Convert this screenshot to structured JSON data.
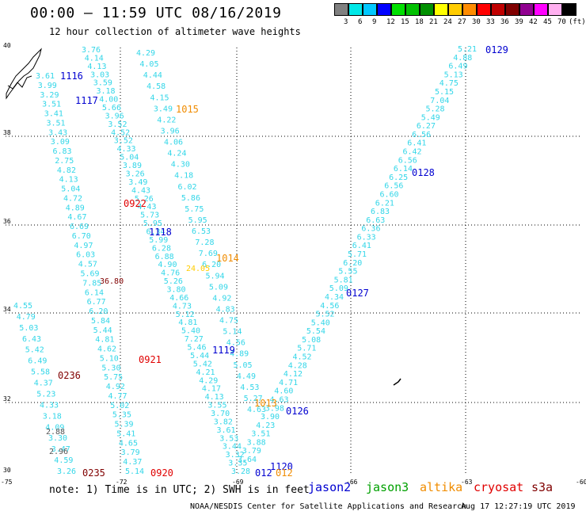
{
  "header": {
    "title": "00:00 – 11:59 UTC 08/16/2019",
    "subtitle": "12 hour collection of altimeter wave heights"
  },
  "legend": {
    "unit": "(ft)",
    "swatches": [
      {
        "label": "3",
        "color": "#808080"
      },
      {
        "label": "6",
        "color": "#00e8e8"
      },
      {
        "label": "9",
        "color": "#00c8ff"
      },
      {
        "label": "12",
        "color": "#0000ff"
      },
      {
        "label": "15",
        "color": "#00e000"
      },
      {
        "label": "18",
        "color": "#00c000"
      },
      {
        "label": "21",
        "color": "#009000"
      },
      {
        "label": "24",
        "color": "#ffff00"
      },
      {
        "label": "27",
        "color": "#ffcc00"
      },
      {
        "label": "30",
        "color": "#ff8c00"
      },
      {
        "label": "33",
        "color": "#ff0000"
      },
      {
        "label": "36",
        "color": "#c00000"
      },
      {
        "label": "39",
        "color": "#800000"
      },
      {
        "label": "42",
        "color": "#900090"
      },
      {
        "label": "45",
        "color": "#ff00ff"
      },
      {
        "label": "70",
        "color": "#ffb0f0"
      },
      {
        "label": "",
        "color": "#000000"
      }
    ]
  },
  "axes": {
    "lat_labels": [
      "40",
      "38",
      "36",
      "34",
      "32",
      "30"
    ],
    "lon_labels": [
      "-75",
      "-72",
      "-69",
      "-66",
      "-63",
      "-60"
    ]
  },
  "tracks": [
    {
      "track": "A",
      "values": [
        "3.76",
        "4.14",
        "4.13",
        "3.03",
        "3.59",
        "3.18",
        "4.00",
        "5.66",
        "3.96",
        "3.52",
        "4.52",
        "3.52",
        "4.33",
        "5.04",
        "3.89",
        "3.26",
        "3.49",
        "4.43",
        "5.26",
        "4.43",
        "5.73",
        "5.95",
        "6.34",
        "5.99",
        "6.28",
        "6.88",
        "4.90",
        "4.76",
        "5.26",
        "3.80",
        "4.66",
        "4.73",
        "5.12",
        "4.81",
        "5.40",
        "7.27",
        "5.46",
        "5.44",
        "5.42",
        "4.21",
        "4.29",
        "4.17",
        "4.13",
        "3.55",
        "3.70",
        "3.82",
        "3.61",
        "3.53",
        "3.44",
        "3.32",
        "3.35",
        "3.28"
      ]
    },
    {
      "track": "B",
      "values": [
        "3.61",
        "3.99",
        "3.29",
        "3.51",
        "3.41",
        "3.51",
        "3.43",
        "3.09",
        "6.83",
        "2.75",
        "4.82",
        "4.13",
        "5.04",
        "4.72",
        "4.89",
        "4.67",
        "6.69",
        "6.70",
        "4.97",
        "6.03",
        "4.57",
        "5.69",
        "7.85",
        "6.14",
        "6.77",
        "6.20",
        "5.84",
        "5.44",
        "4.81",
        "4.62",
        "5.10",
        "5.30",
        "5.75",
        "4.92",
        "4.77",
        "5.02",
        "5.35",
        "5.39",
        "5.41",
        "4.65",
        "3.79",
        "4.37",
        "5.14"
      ]
    },
    {
      "track": "C",
      "values": [
        "4.29",
        "4.05",
        "4.44",
        "4.58",
        "4.15",
        "3.49",
        "4.22",
        "3.96",
        "4.06",
        "4.24",
        "4.30",
        "4.18",
        "6.02",
        "5.86",
        "5.75",
        "5.95",
        "6.53",
        "7.28",
        "7.69",
        "6.20",
        "5.94",
        "5.09",
        "4.92",
        "4.83",
        "4.75",
        "5.14",
        "4.56",
        "4.89",
        "5.05",
        "4.49",
        "4.53",
        "5.27",
        "4.63"
      ]
    },
    {
      "track": "D",
      "values": [
        "4.55",
        "4.79",
        "5.03",
        "6.43",
        "5.42",
        "6.49",
        "5.58",
        "4.37",
        "5.23",
        "4.33",
        "3.18",
        "4.09",
        "3.30",
        "3.47",
        "4.59",
        "3.26"
      ]
    },
    {
      "track": "E",
      "values": [
        "5.21",
        "4.88",
        "6.49",
        "5.13",
        "4.75",
        "5.15",
        "7.04",
        "5.28",
        "5.49",
        "6.27",
        "6.56",
        "6.41",
        "6.42",
        "6.56",
        "6.14",
        "6.25",
        "6.56",
        "6.60",
        "6.21",
        "6.83",
        "6.63",
        "6.36",
        "6.33",
        "6.41",
        "5.71",
        "6.20",
        "5.55",
        "5.81",
        "5.09",
        "4.34",
        "4.56",
        "5.52",
        "5.40",
        "5.54",
        "5.08",
        "5.71",
        "4.52",
        "4.28",
        "4.12",
        "4.71",
        "4.60",
        "4.63",
        "3.98",
        "3.90",
        "4.23",
        "3.51",
        "3.88",
        "3.79",
        "3.64"
      ]
    },
    {
      "track": "hi",
      "values": [
        "2.88",
        "2.96",
        "24.05",
        "36.80"
      ]
    }
  ],
  "passes": [
    {
      "label": "1116",
      "color": "#0000d0"
    },
    {
      "label": "1117",
      "color": "#0000d0"
    },
    {
      "label": "1015",
      "color": "#f08c00"
    },
    {
      "label": "0922",
      "color": "#e00000"
    },
    {
      "label": "1118",
      "color": "#0000d0"
    },
    {
      "label": "1014",
      "color": "#f08c00"
    },
    {
      "label": "1119",
      "color": "#0000d0"
    },
    {
      "label": "0921",
      "color": "#e00000"
    },
    {
      "label": "0236",
      "color": "#800000"
    },
    {
      "label": "1013",
      "color": "#f08c00"
    },
    {
      "label": "0126",
      "color": "#0000d0"
    },
    {
      "label": "0127",
      "color": "#0000d0"
    },
    {
      "label": "0128",
      "color": "#0000d0"
    },
    {
      "label": "0129",
      "color": "#0000d0"
    },
    {
      "label": "1120",
      "color": "#0000d0"
    },
    {
      "label": "012",
      "color": "#0000d0"
    },
    {
      "label": "012",
      "color": "#f08c00"
    },
    {
      "label": "0235",
      "color": "#800000"
    },
    {
      "label": "0920",
      "color": "#e00000"
    }
  ],
  "footer": {
    "note": "note: 1) Time is in UTC; 2) SWH is in feet",
    "satellites": [
      {
        "name": "jason2",
        "color": "#0000d0"
      },
      {
        "name": "jason3",
        "color": "#00a000"
      },
      {
        "name": "altika",
        "color": "#f08c00"
      },
      {
        "name": "cryosat",
        "color": "#e00000"
      },
      {
        "name": "s3a",
        "color": "#800000"
      }
    ],
    "credit": "NOAA/NESDIS Center for Satellite Applications and Research",
    "timestamp": "Aug 17 12:27:19 UTC 2019"
  }
}
